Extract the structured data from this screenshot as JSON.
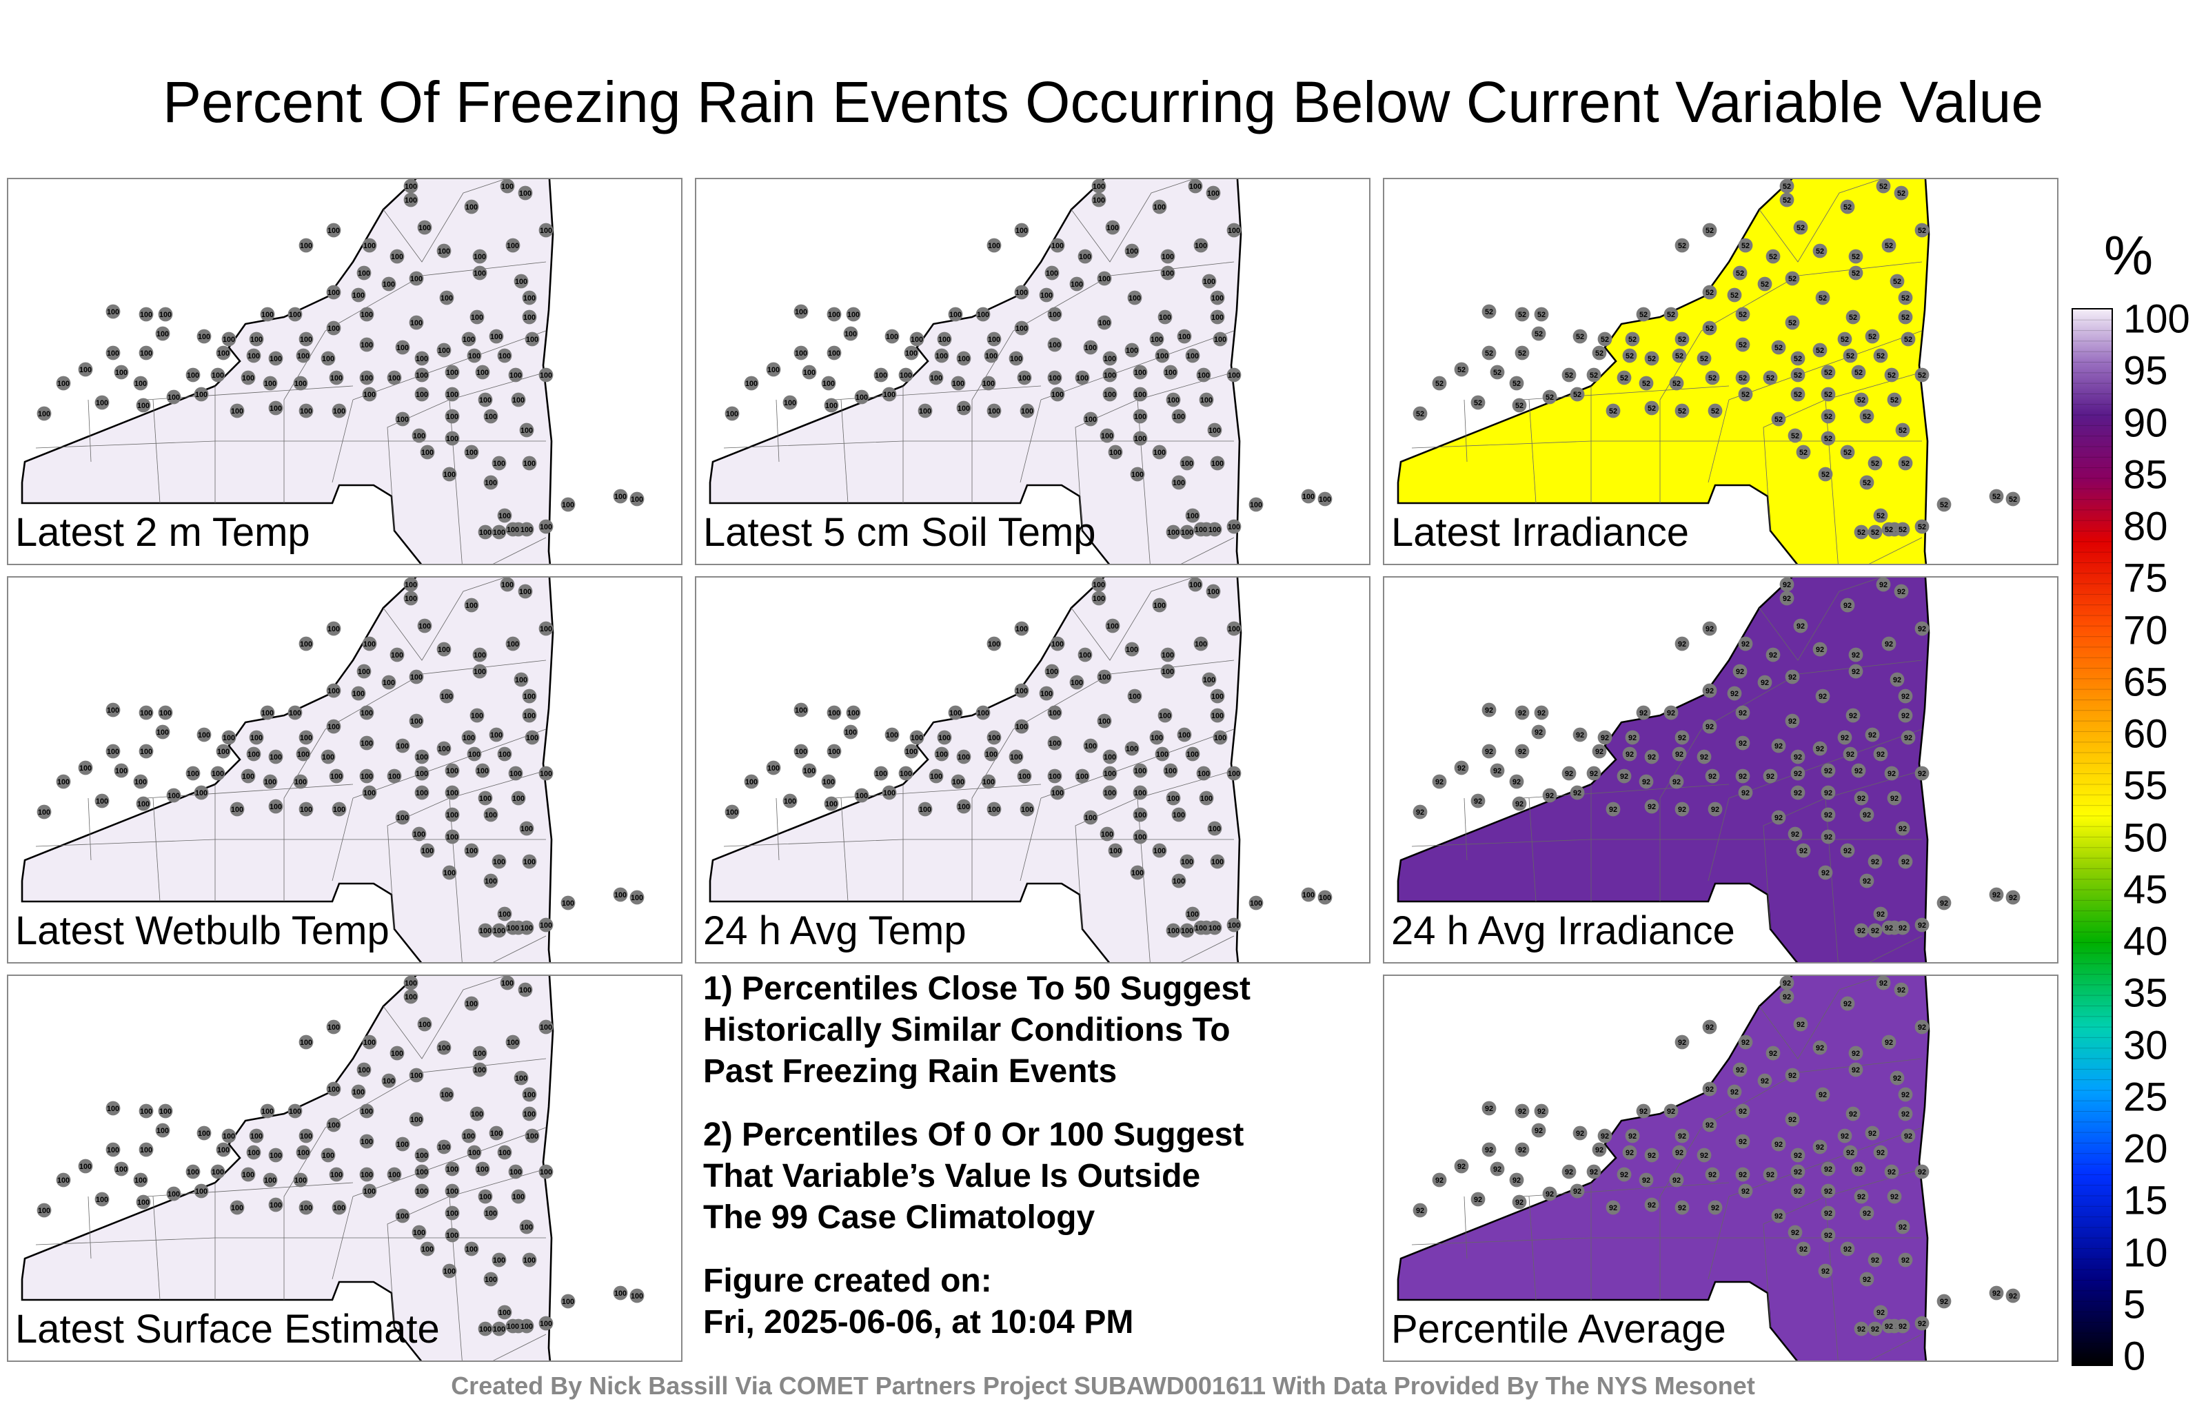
{
  "title": "Percent Of Freezing Rain Events Occurring Below Current Variable Value",
  "colorbar": {
    "unit": "%",
    "ticks": [
      "100",
      "95",
      "90",
      "85",
      "80",
      "75",
      "70",
      "65",
      "60",
      "55",
      "50",
      "45",
      "40",
      "35",
      "30",
      "25",
      "20",
      "15",
      "10",
      "5",
      "0"
    ]
  },
  "chart_data": {
    "type": "heatmap",
    "value_range": [
      0,
      100
    ],
    "panels": [
      {
        "label": "Latest 2 m Temp",
        "fill": "#f1ecf6",
        "station_value": "100"
      },
      {
        "label": "Latest 5 cm Soil Temp",
        "fill": "#f1ecf6",
        "station_value": "100"
      },
      {
        "label": "Latest Irradiance",
        "fill": "#ffff00",
        "station_value": "52"
      },
      {
        "label": "Latest Wetbulb Temp",
        "fill": "#f1ecf6",
        "station_value": "100"
      },
      {
        "label": "24 h Avg Temp",
        "fill": "#f1ecf6",
        "station_value": "100"
      },
      {
        "label": "24 h Avg Irradiance",
        "fill": "#6a2ca0",
        "station_value": "92"
      },
      {
        "label": "Latest Surface Estimate",
        "fill": "#f1ecf6",
        "station_value": "100"
      },
      {
        "label": "Percentile Average",
        "fill": "#7a3bb0",
        "station_value": "92"
      }
    ]
  },
  "notes": {
    "note1": "1) Percentiles Close To 50 Suggest\nHistorically Similar Conditions To\nPast Freezing Rain Events",
    "note2": "2) Percentiles Of 0 Or 100 Suggest\nThat Variable’s Value Is Outside\nThe 99 Case Climatology",
    "note3": "Figure created on:\nFri, 2025-06-06, at 10:04 PM"
  },
  "credit": "Created By Nick Bassill Via COMET Partners Project SUBAWD001611 With Data Provided By The NYS Mesonet"
}
